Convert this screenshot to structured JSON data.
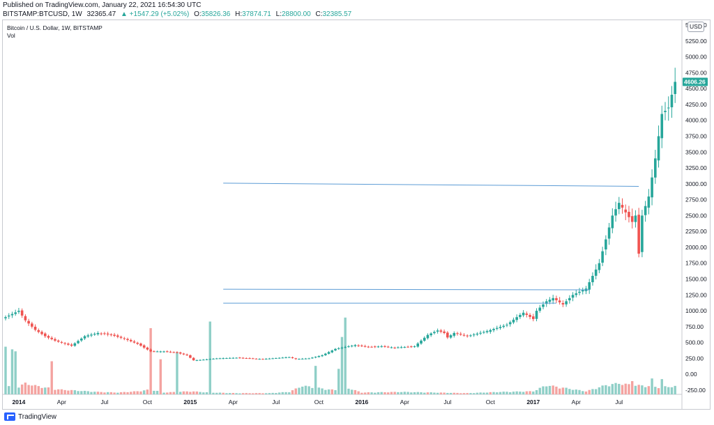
{
  "header": {
    "published": "Published on TradingView.com, January 22, 2021 16:54:30 UTC",
    "symbol": "BITSTAMP:BTCUSD, 1W",
    "last": "32365.47",
    "change": "▲ +1547.29 (+5.02%)",
    "o_label": "O:",
    "o": "35826.36",
    "h_label": "H:",
    "h": "37874.71",
    "l_label": "L:",
    "l": "28800.00",
    "c_label": "C:",
    "c": "32385.57"
  },
  "legend": {
    "title": "Bitcoin / U.S. Dollar, 1W, BITSTAMP",
    "vol": "Vol"
  },
  "currency_button": "USD",
  "price_badge": {
    "value": "4606.26",
    "color": "#26a69a"
  },
  "footer": {
    "brand": "TradingView",
    "icon": "tradingview-logo-icon"
  },
  "colors": {
    "up": "#26a69a",
    "down": "#ef5350",
    "vol_up": "#8fcfc7",
    "vol_down": "#f4a3a0",
    "trendline": "#5b9bd5"
  },
  "chart_data": {
    "type": "candlestick",
    "y_ticks": [
      "5500.00",
      "5250.00",
      "5000.00",
      "4750.00",
      "4500.00",
      "4250.00",
      "4000.00",
      "3750.00",
      "3500.00",
      "3250.00",
      "3000.00",
      "2750.00",
      "2500.00",
      "2250.00",
      "2000.00",
      "1750.00",
      "1500.00",
      "1250.00",
      "1000.00",
      "750.00",
      "500.00",
      "250.00",
      "0.00",
      "-250.00"
    ],
    "y_tick_values": [
      5500,
      5250,
      5000,
      4750,
      4500,
      4250,
      4000,
      3750,
      3500,
      3250,
      3000,
      2750,
      2500,
      2250,
      2000,
      1750,
      1500,
      1250,
      1000,
      750,
      500,
      250,
      0,
      -250
    ],
    "ylim": [
      -250,
      5500
    ],
    "x_ticks": [
      "2014",
      "Apr",
      "Jul",
      "Oct",
      "2015",
      "Apr",
      "Jul",
      "Oct",
      "2016",
      "Apr",
      "Jul",
      "Oct",
      "2017",
      "Apr",
      "Jul"
    ],
    "x_tick_bars": [
      4,
      17,
      30,
      43,
      56,
      69,
      82,
      95,
      108,
      121,
      134,
      147,
      160,
      173,
      186
    ],
    "x_tick_bold": [
      true,
      false,
      false,
      false,
      true,
      false,
      false,
      false,
      true,
      false,
      false,
      false,
      true,
      false,
      false
    ],
    "close_anchors": [
      [
        0,
        900
      ],
      [
        4,
        1000
      ],
      [
        6,
        850
      ],
      [
        9,
        700
      ],
      [
        12,
        600
      ],
      [
        15,
        530
      ],
      [
        20,
        450
      ],
      [
        24,
        600
      ],
      [
        28,
        650
      ],
      [
        32,
        620
      ],
      [
        36,
        560
      ],
      [
        40,
        480
      ],
      [
        44,
        360
      ],
      [
        48,
        360
      ],
      [
        52,
        340
      ],
      [
        55,
        300
      ],
      [
        57,
        220
      ],
      [
        60,
        230
      ],
      [
        64,
        250
      ],
      [
        70,
        260
      ],
      [
        78,
        240
      ],
      [
        86,
        270
      ],
      [
        88,
        240
      ],
      [
        92,
        250
      ],
      [
        96,
        300
      ],
      [
        100,
        400
      ],
      [
        102,
        420
      ],
      [
        106,
        460
      ],
      [
        110,
        430
      ],
      [
        114,
        440
      ],
      [
        118,
        420
      ],
      [
        124,
        440
      ],
      [
        128,
        620
      ],
      [
        131,
        690
      ],
      [
        133,
        650
      ],
      [
        134,
        580
      ],
      [
        136,
        650
      ],
      [
        140,
        600
      ],
      [
        146,
        680
      ],
      [
        152,
        780
      ],
      [
        155,
        900
      ],
      [
        157,
        970
      ],
      [
        160,
        870
      ],
      [
        161,
        1000
      ],
      [
        164,
        1150
      ],
      [
        166,
        1200
      ],
      [
        169,
        1100
      ],
      [
        172,
        1250
      ],
      [
        176,
        1350
      ],
      [
        180,
        1750
      ],
      [
        184,
        2500
      ],
      [
        186,
        2700
      ],
      [
        188,
        2550
      ],
      [
        190,
        2400
      ],
      [
        191,
        2500
      ],
      [
        192,
        1900
      ],
      [
        193,
        2500
      ],
      [
        195,
        2800
      ],
      [
        197,
        3400
      ],
      [
        199,
        4100
      ],
      [
        201,
        4200
      ],
      [
        203,
        4606
      ]
    ],
    "volume_anchors": [
      [
        0,
        150
      ],
      [
        3,
        100
      ],
      [
        6,
        180
      ],
      [
        10,
        130
      ],
      [
        16,
        80
      ],
      [
        22,
        60
      ],
      [
        28,
        40
      ],
      [
        34,
        30
      ],
      [
        40,
        50
      ],
      [
        44,
        80
      ],
      [
        48,
        30
      ],
      [
        56,
        50
      ],
      [
        62,
        30
      ],
      [
        70,
        20
      ],
      [
        80,
        20
      ],
      [
        86,
        40
      ],
      [
        90,
        140
      ],
      [
        94,
        110
      ],
      [
        98,
        80
      ],
      [
        100,
        70
      ],
      [
        102,
        900
      ],
      [
        104,
        100
      ],
      [
        108,
        30
      ],
      [
        120,
        40
      ],
      [
        130,
        30
      ],
      [
        140,
        20
      ],
      [
        150,
        40
      ],
      [
        160,
        50
      ],
      [
        164,
        150
      ],
      [
        170,
        100
      ],
      [
        176,
        50
      ],
      [
        182,
        150
      ],
      [
        186,
        180
      ],
      [
        190,
        150
      ],
      [
        194,
        140
      ],
      [
        198,
        120
      ],
      [
        203,
        130
      ]
    ],
    "volume_spikes": [
      [
        0,
        720
      ],
      [
        2,
        680
      ],
      [
        3,
        650
      ],
      [
        14,
        500
      ],
      [
        44,
        1000
      ],
      [
        47,
        530
      ],
      [
        52,
        640
      ],
      [
        62,
        1100
      ],
      [
        94,
        430
      ],
      [
        103,
        1160
      ],
      [
        190,
        200
      ],
      [
        196,
        240
      ],
      [
        199,
        230
      ]
    ],
    "trendlines": [
      {
        "x1": 66,
        "y1": 3010,
        "x2": 192,
        "y2": 2960
      },
      {
        "x1": 66,
        "y1": 1340,
        "x2": 177,
        "y2": 1330
      },
      {
        "x1": 66,
        "y1": 1120,
        "x2": 167,
        "y2": 1120
      }
    ]
  }
}
